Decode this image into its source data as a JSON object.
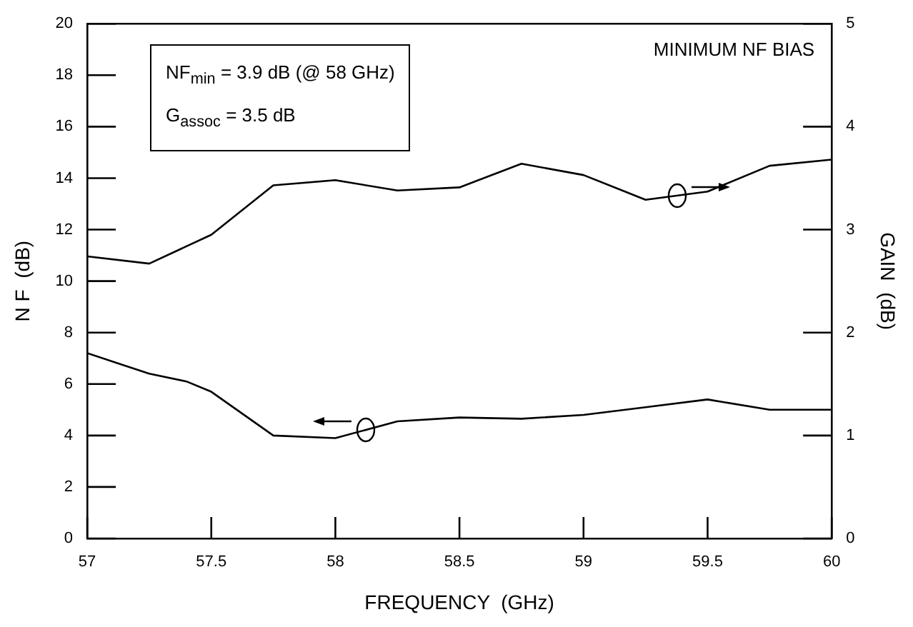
{
  "chart_data": {
    "type": "line",
    "xlabel": "FREQUENCY  (GHz)",
    "ylabel": "N F  (dB)",
    "y2label": "GAIN  (dB)",
    "x": [
      57,
      57.25,
      57.4,
      57.5,
      57.75,
      58,
      58.25,
      58.5,
      58.75,
      59,
      59.25,
      59.5,
      59.75,
      60
    ],
    "series": [
      {
        "color": "#000000",
        "values": [
          7.2,
          6.4,
          6.1,
          5.7,
          4.0,
          3.9,
          4.55,
          4.7,
          4.65,
          4.8,
          5.1,
          5.4,
          5.0,
          5.0
        ]
      },
      {
        "color": "#000000",
        "axis": "y2",
        "x": [
          57,
          57.25,
          57.5,
          57.75,
          58,
          58.25,
          58.5,
          58.75,
          59,
          59.25,
          59.5,
          59.75,
          60
        ],
        "values": [
          2.74,
          2.67,
          2.95,
          3.43,
          3.48,
          3.38,
          3.41,
          3.64,
          3.53,
          3.29,
          3.37,
          3.62,
          3.68
        ]
      }
    ],
    "xlim": [
      57,
      60
    ],
    "xticks": [
      57,
      57.5,
      58,
      58.5,
      59,
      59.5,
      60
    ],
    "ylim": [
      0,
      20
    ],
    "yticks": [
      0,
      2,
      4,
      6,
      8,
      10,
      12,
      14,
      16,
      18,
      20
    ],
    "y2lim": [
      0,
      5
    ],
    "y2ticks": [
      0,
      1,
      2,
      3,
      4,
      5
    ],
    "grid": false,
    "legend": false,
    "marker": "none",
    "line_style": "solid",
    "annotations": [
      "MINIMUM NF BIAS",
      "NF$_{min}$ = 3.9 dB (@ 58 GHz)",
      "G$_{assoc}$ = 3.5 dB"
    ]
  }
}
